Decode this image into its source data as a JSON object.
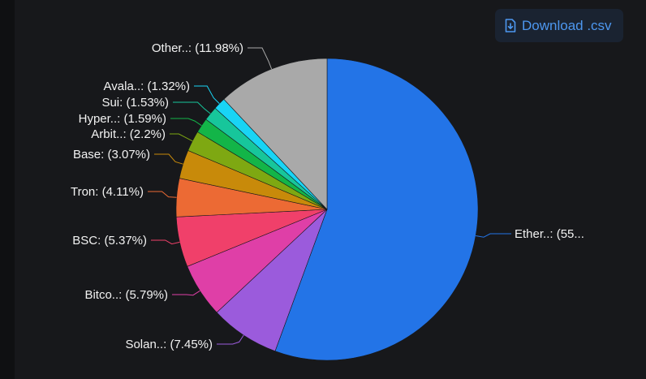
{
  "download_button": {
    "label": "Download .csv",
    "icon": "file-download-icon"
  },
  "colors": {
    "background": "#17181b",
    "button_bg": "#1a2331",
    "button_text": "#4d97ef"
  },
  "chart_data": {
    "type": "pie",
    "slices": [
      {
        "label": "Ether..: (55...",
        "name": "Ether..",
        "value": 55.59,
        "color": "#2374e7"
      },
      {
        "label": "Solan..: (7.45%)",
        "name": "Solan..",
        "value": 7.45,
        "color": "#9b5bdc"
      },
      {
        "label": "Bitco..: (5.79%)",
        "name": "Bitco..",
        "value": 5.79,
        "color": "#df3fa7"
      },
      {
        "label": "BSC: (5.37%)",
        "name": "BSC",
        "value": 5.37,
        "color": "#f0406a"
      },
      {
        "label": "Tron: (4.11%)",
        "name": "Tron",
        "value": 4.11,
        "color": "#ec6a34"
      },
      {
        "label": "Base: (3.07%)",
        "name": "Base",
        "value": 3.07,
        "color": "#c88a0a"
      },
      {
        "label": "Arbit..: (2.2%)",
        "name": "Arbit..",
        "value": 2.2,
        "color": "#7ea812"
      },
      {
        "label": "Hyper..: (1.59%)",
        "name": "Hyper..",
        "value": 1.59,
        "color": "#13b548"
      },
      {
        "label": "Sui: (1.53%)",
        "name": "Sui",
        "value": 1.53,
        "color": "#17c69b"
      },
      {
        "label": "Avala..: (1.32%)",
        "name": "Avala..",
        "value": 1.32,
        "color": "#19d4f5"
      },
      {
        "label": "Other..: (11.98%)",
        "name": "Other..",
        "value": 11.98,
        "color": "#a9a9a9"
      }
    ]
  }
}
